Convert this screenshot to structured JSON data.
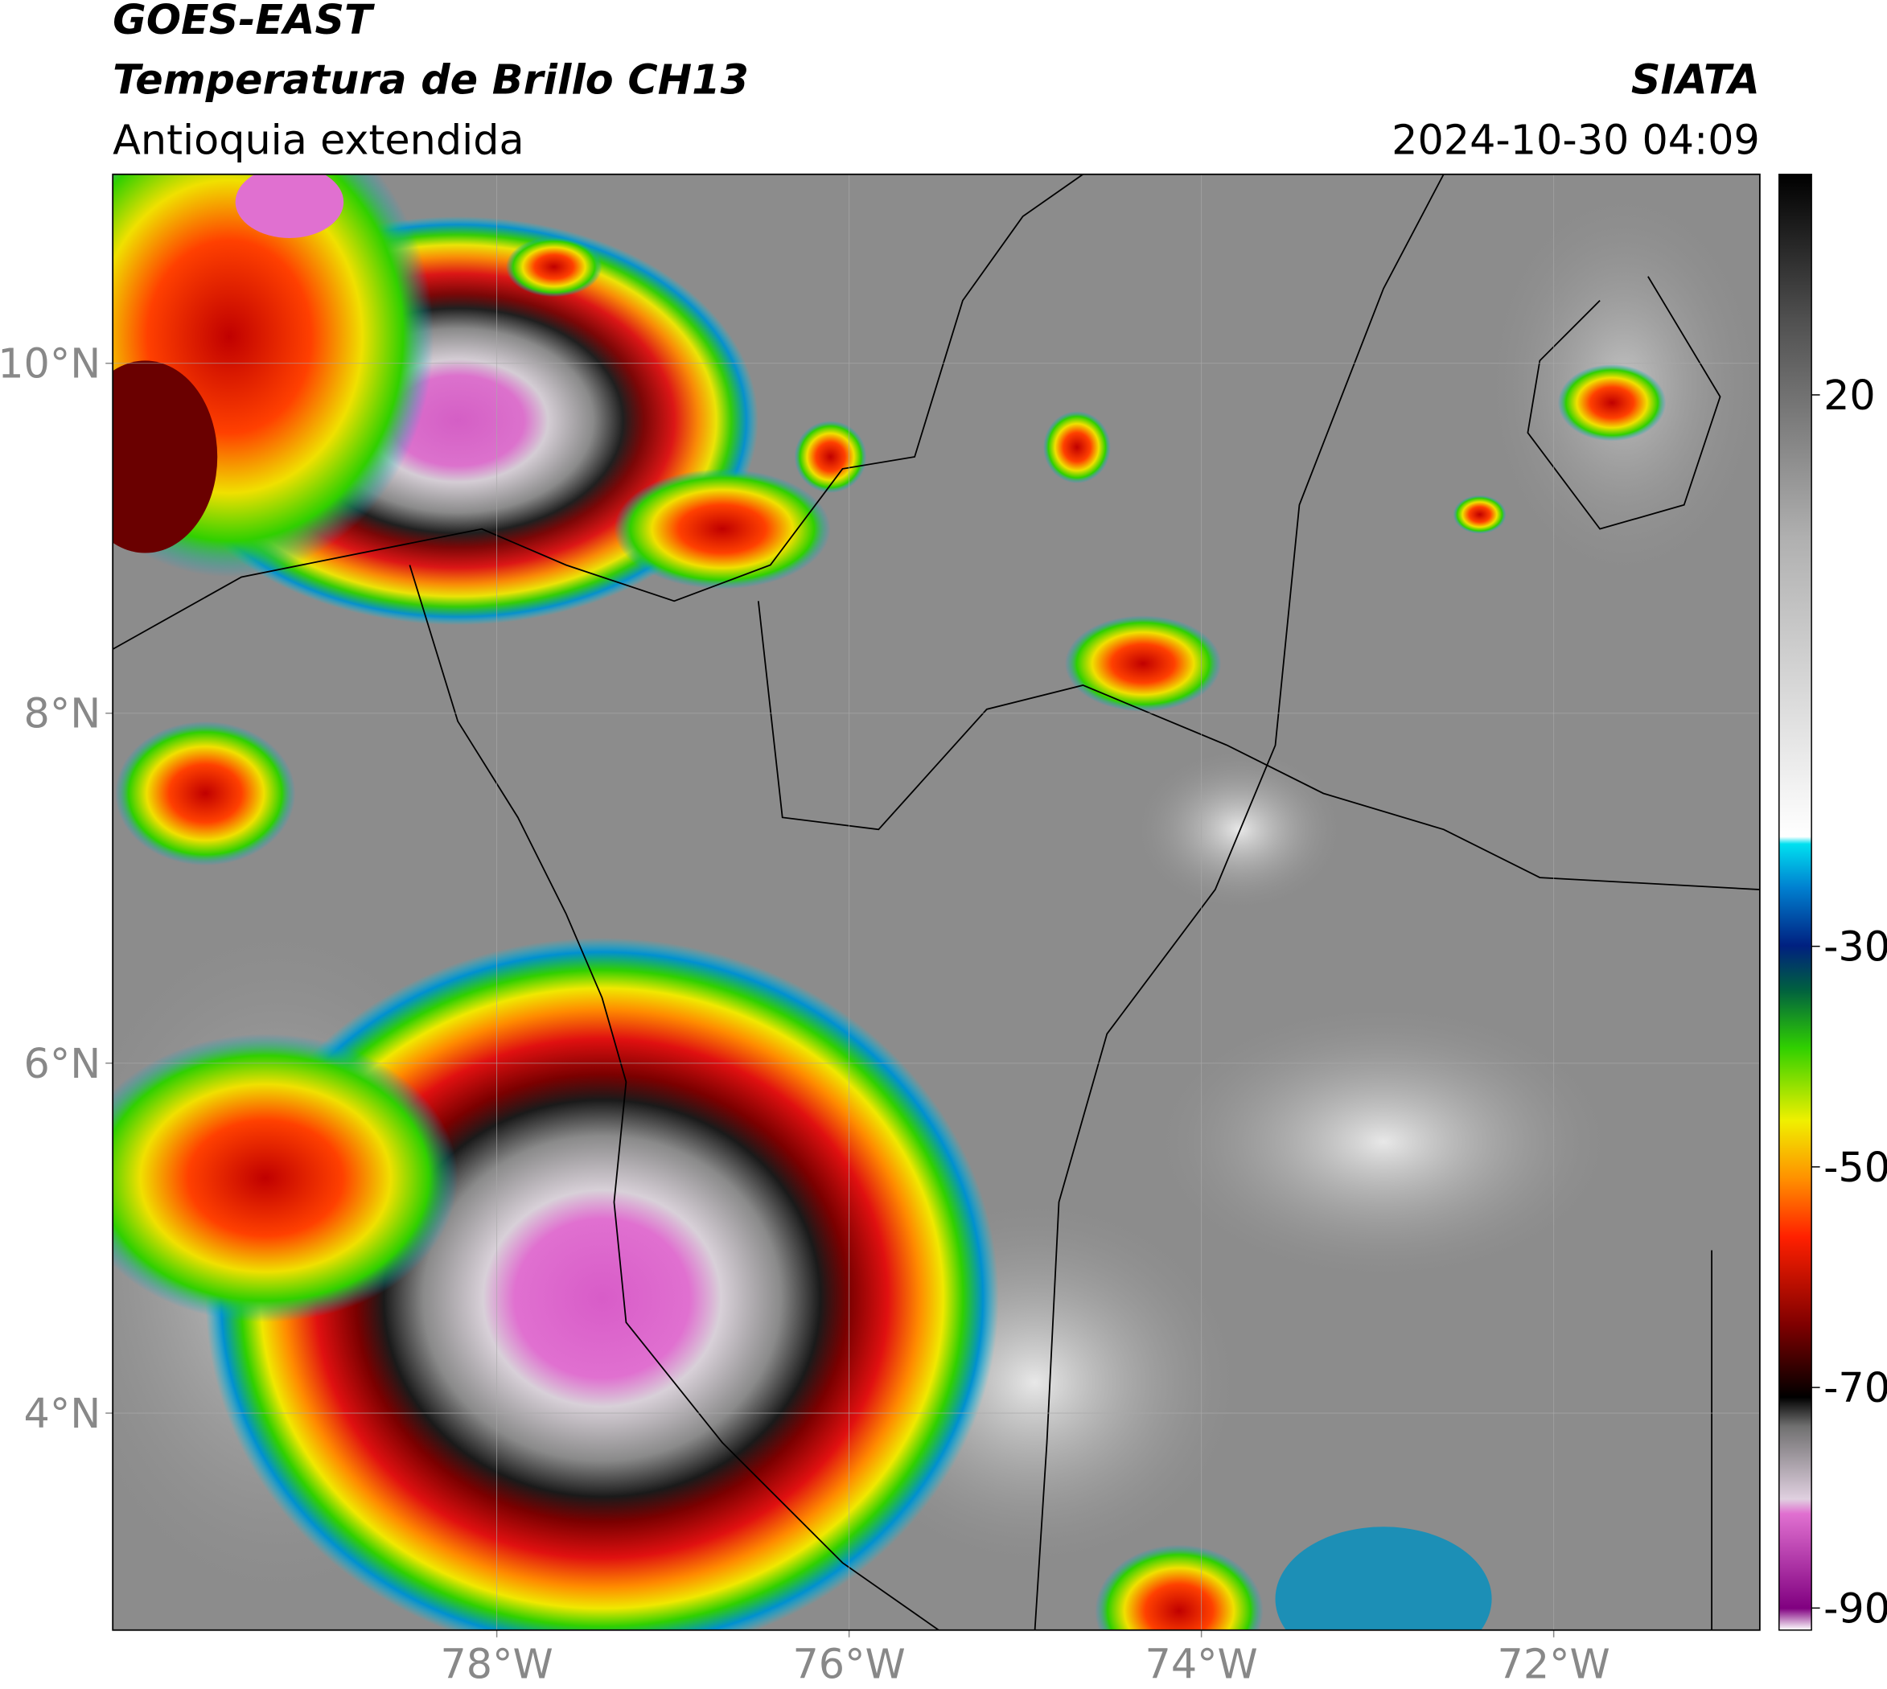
{
  "header": {
    "satellite": "GOES-EAST",
    "product": "Temperatura de Brillo CH13",
    "region": "Antioquia extendida",
    "source": "SIATA",
    "datetime": "2024-10-30 04:09"
  },
  "map": {
    "xlim": [
      -80.18,
      -70.83
    ],
    "ylim": [
      2.76,
      11.08
    ],
    "xticks": [
      {
        "value": -78,
        "label": "78°W"
      },
      {
        "value": -76,
        "label": "76°W"
      },
      {
        "value": -74,
        "label": "74°W"
      },
      {
        "value": -72,
        "label": "72°W"
      }
    ],
    "yticks": [
      {
        "value": 10,
        "label": "10°N"
      },
      {
        "value": 8,
        "label": "8°N"
      },
      {
        "value": 6,
        "label": "6°N"
      },
      {
        "value": 4,
        "label": "4°N"
      }
    ],
    "grid": true
  },
  "colorbar": {
    "lim": [
      -92,
      40
    ],
    "ticks": [
      20,
      -30,
      -50,
      -70,
      -90
    ]
  }
}
